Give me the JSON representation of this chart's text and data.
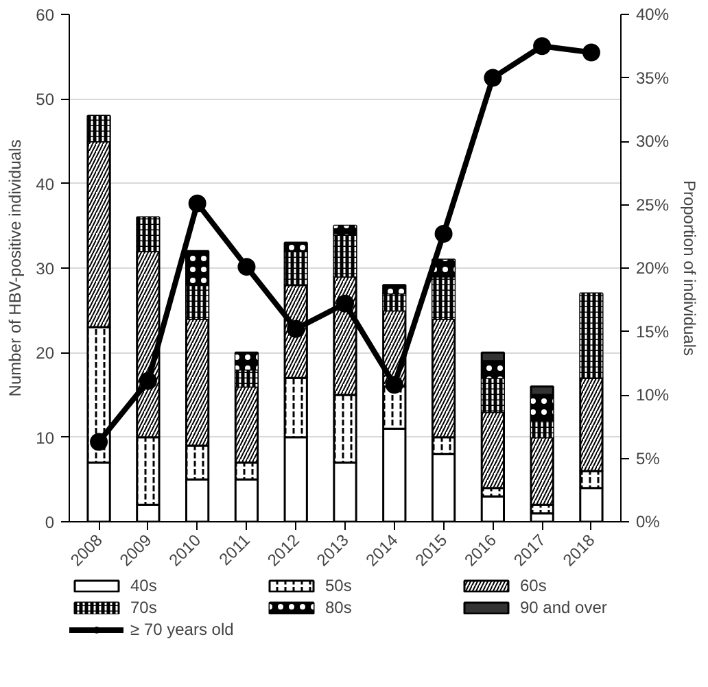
{
  "chart_data": {
    "type": "bar",
    "stacked": true,
    "categories": [
      "2008",
      "2009",
      "2010",
      "2011",
      "2012",
      "2013",
      "2014",
      "2015",
      "2016",
      "2017",
      "2018"
    ],
    "ylabel": "Number of HBV-positive individuals",
    "y2label": "Proportion of individuals",
    "ylim": [
      0,
      60
    ],
    "yticks": [
      0,
      10,
      20,
      30,
      40,
      50,
      60
    ],
    "y2lim": [
      0,
      40
    ],
    "y2ticks": [
      {
        "value": 0,
        "label": "0%"
      },
      {
        "value": 5,
        "label": "5%"
      },
      {
        "value": 10,
        "label": "10%"
      },
      {
        "value": 15,
        "label": "15%"
      },
      {
        "value": 20,
        "label": "20%"
      },
      {
        "value": 25,
        "label": "25%"
      },
      {
        "value": 30,
        "label": "30%"
      },
      {
        "value": 35,
        "label": "35%"
      },
      {
        "value": 40,
        "label": "40%"
      }
    ],
    "grid": "y",
    "legend": "bottom",
    "series": [
      {
        "name": "40s",
        "color": "#ffffff",
        "values": [
          7,
          2,
          5,
          5,
          10,
          7,
          11,
          8,
          3,
          1,
          4
        ]
      },
      {
        "name": "50s",
        "color": "#ffffff",
        "values": [
          16,
          8,
          4,
          2,
          7,
          8,
          5,
          2,
          1,
          1,
          2
        ]
      },
      {
        "name": "60s",
        "color": "#ffffff",
        "values": [
          22,
          22,
          15,
          9,
          11,
          14,
          9,
          14,
          9,
          8,
          11
        ]
      },
      {
        "name": "70s",
        "color": "#000000",
        "values": [
          3,
          4,
          4,
          2,
          4,
          5,
          2,
          5,
          4,
          2,
          10
        ]
      },
      {
        "name": "80s",
        "color": "#000000",
        "values": [
          0,
          0,
          4,
          2,
          1,
          1,
          1,
          2,
          2,
          3,
          0
        ]
      },
      {
        "name": "90 and over",
        "color": "#333333",
        "values": [
          0,
          0,
          0,
          0,
          0,
          0,
          0,
          0,
          1,
          1,
          0
        ]
      },
      {
        "name": "≥ 70 years old",
        "type": "line",
        "axis": "y2",
        "marker": "circle",
        "color": "#000000",
        "values": [
          6.3,
          11.1,
          25.1,
          20.1,
          15.2,
          17.2,
          10.8,
          22.7,
          35,
          37.5,
          37
        ]
      }
    ]
  }
}
